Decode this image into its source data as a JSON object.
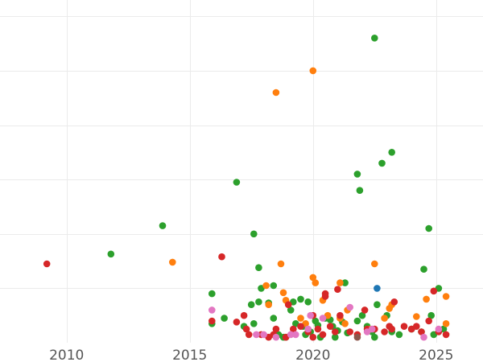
{
  "chart_data": {
    "type": "scatter",
    "title": "",
    "xlabel": "",
    "ylabel": "",
    "xlim": [
      2007.3,
      2026.9
    ],
    "ylim": [
      0,
      63
    ],
    "grid": true,
    "legend": "none",
    "x_ticks": [
      {
        "value": 2010,
        "label": "2010"
      },
      {
        "value": 2015,
        "label": "2015"
      },
      {
        "value": 2020,
        "label": "2020"
      },
      {
        "value": 2025,
        "label": "2025"
      }
    ],
    "y_gridlines": [
      10,
      20,
      30,
      40,
      50,
      60
    ],
    "series": [
      {
        "color": "#2ca02c",
        "points": [
          [
            2011.8,
            16.3
          ],
          [
            2013.9,
            21.5
          ],
          [
            2015.9,
            9.0
          ],
          [
            2015.9,
            3.5
          ],
          [
            2016.4,
            4.5
          ],
          [
            2016.9,
            29.5
          ],
          [
            2017.2,
            3.0
          ],
          [
            2017.5,
            7.0
          ],
          [
            2017.6,
            3.5
          ],
          [
            2017.6,
            20.0
          ],
          [
            2017.8,
            13.8
          ],
          [
            2017.8,
            7.5
          ],
          [
            2017.9,
            10.0
          ],
          [
            2018.2,
            7.3
          ],
          [
            2018.4,
            4.5
          ],
          [
            2018.4,
            10.5
          ],
          [
            2018.6,
            1.5
          ],
          [
            2018.8,
            1.0
          ],
          [
            2018.9,
            1.0
          ],
          [
            2019.1,
            6.0
          ],
          [
            2019.2,
            7.5
          ],
          [
            2019.3,
            3.5
          ],
          [
            2019.5,
            8.0
          ],
          [
            2019.6,
            3.0
          ],
          [
            2019.7,
            1.5
          ],
          [
            2019.8,
            7.5
          ],
          [
            2019.9,
            2.0
          ],
          [
            2020.1,
            4.0
          ],
          [
            2020.2,
            3.2
          ],
          [
            2020.3,
            1.0
          ],
          [
            2020.5,
            4.5
          ],
          [
            2020.7,
            4.2
          ],
          [
            2020.8,
            3.0
          ],
          [
            2020.9,
            1.0
          ],
          [
            2021.0,
            2.2
          ],
          [
            2021.2,
            3.8
          ],
          [
            2021.3,
            11.0
          ],
          [
            2021.4,
            1.8
          ],
          [
            2021.8,
            4.0
          ],
          [
            2021.8,
            31.0
          ],
          [
            2021.9,
            28.0
          ],
          [
            2022.0,
            5.0
          ],
          [
            2022.2,
            3.0
          ],
          [
            2022.4,
            2.0
          ],
          [
            2022.5,
            56.0
          ],
          [
            2022.5,
            1.0
          ],
          [
            2022.6,
            7.0
          ],
          [
            2022.8,
            33.0
          ],
          [
            2023.0,
            5.0
          ],
          [
            2023.2,
            35.0
          ],
          [
            2023.2,
            2.0
          ],
          [
            2023.5,
            1.5
          ],
          [
            2024.0,
            2.5
          ],
          [
            2024.4,
            2.0
          ],
          [
            2024.5,
            13.5
          ],
          [
            2024.7,
            21.0
          ],
          [
            2024.8,
            5.0
          ],
          [
            2024.9,
            1.5
          ],
          [
            2025.1,
            10.0
          ],
          [
            2025.3,
            2.5
          ]
        ]
      },
      {
        "color": "#ff7f0e",
        "points": [
          [
            2014.3,
            14.8
          ],
          [
            2018.1,
            10.5
          ],
          [
            2018.2,
            7.0
          ],
          [
            2018.5,
            46.0
          ],
          [
            2018.7,
            14.5
          ],
          [
            2018.8,
            9.2
          ],
          [
            2018.9,
            7.8
          ],
          [
            2019.5,
            4.5
          ],
          [
            2019.7,
            3.5
          ],
          [
            2020.0,
            12.0
          ],
          [
            2020.0,
            50.0
          ],
          [
            2020.1,
            11.0
          ],
          [
            2020.4,
            7.8
          ],
          [
            2020.6,
            5.0
          ],
          [
            2021.1,
            4.5
          ],
          [
            2021.1,
            11.0
          ],
          [
            2021.3,
            3.5
          ],
          [
            2021.4,
            6.0
          ],
          [
            2022.3,
            2.5
          ],
          [
            2022.5,
            14.5
          ],
          [
            2022.9,
            4.5
          ],
          [
            2023.1,
            6.3
          ],
          [
            2023.2,
            7.0
          ],
          [
            2024.2,
            4.8
          ],
          [
            2024.6,
            8.0
          ],
          [
            2025.4,
            8.5
          ],
          [
            2025.4,
            3.5
          ]
        ]
      },
      {
        "color": "#d62728",
        "points": [
          [
            2009.2,
            14.5
          ],
          [
            2016.3,
            15.8
          ],
          [
            2015.9,
            4.0
          ],
          [
            2016.9,
            3.8
          ],
          [
            2017.2,
            5.0
          ],
          [
            2017.3,
            2.5
          ],
          [
            2017.4,
            1.5
          ],
          [
            2017.9,
            1.5
          ],
          [
            2018.2,
            1.0
          ],
          [
            2018.4,
            1.5
          ],
          [
            2018.5,
            2.5
          ],
          [
            2018.9,
            1.0
          ],
          [
            2019.0,
            7.0
          ],
          [
            2019.2,
            2.5
          ],
          [
            2019.5,
            3.0
          ],
          [
            2019.8,
            2.0
          ],
          [
            2020.0,
            1.0
          ],
          [
            2020.0,
            5.0
          ],
          [
            2020.2,
            2.5
          ],
          [
            2020.4,
            1.5
          ],
          [
            2020.5,
            8.5
          ],
          [
            2020.5,
            9.0
          ],
          [
            2020.7,
            3.0
          ],
          [
            2020.9,
            2.0
          ],
          [
            2021.0,
            9.8
          ],
          [
            2021.1,
            5.0
          ],
          [
            2021.5,
            2.0
          ],
          [
            2021.8,
            1.5
          ],
          [
            2022.1,
            6.0
          ],
          [
            2022.2,
            2.5
          ],
          [
            2022.5,
            2.5
          ],
          [
            2022.9,
            2.0
          ],
          [
            2023.1,
            3.0
          ],
          [
            2023.2,
            2.5
          ],
          [
            2023.3,
            7.5
          ],
          [
            2023.7,
            3.0
          ],
          [
            2024.0,
            2.5
          ],
          [
            2024.2,
            3.0
          ],
          [
            2024.4,
            2.0
          ],
          [
            2024.7,
            4.0
          ],
          [
            2024.9,
            9.5
          ],
          [
            2025.1,
            2.0
          ],
          [
            2025.4,
            1.5
          ]
        ]
      },
      {
        "color": "#e377c2",
        "points": [
          [
            2015.9,
            6.0
          ],
          [
            2017.7,
            1.5
          ],
          [
            2018.0,
            1.5
          ],
          [
            2018.5,
            1.0
          ],
          [
            2019.1,
            1.5
          ],
          [
            2019.3,
            1.5
          ],
          [
            2019.8,
            2.5
          ],
          [
            2019.9,
            5.0
          ],
          [
            2020.4,
            4.5
          ],
          [
            2021.5,
            6.5
          ],
          [
            2022.2,
            2.0
          ],
          [
            2022.4,
            2.5
          ],
          [
            2024.5,
            1.0
          ],
          [
            2025.1,
            2.5
          ]
        ]
      },
      {
        "color": "#8c564b",
        "points": [
          [
            2021.8,
            1.0
          ]
        ]
      },
      {
        "color": "#1f77b4",
        "points": [
          [
            2022.6,
            10.0
          ]
        ]
      }
    ]
  }
}
